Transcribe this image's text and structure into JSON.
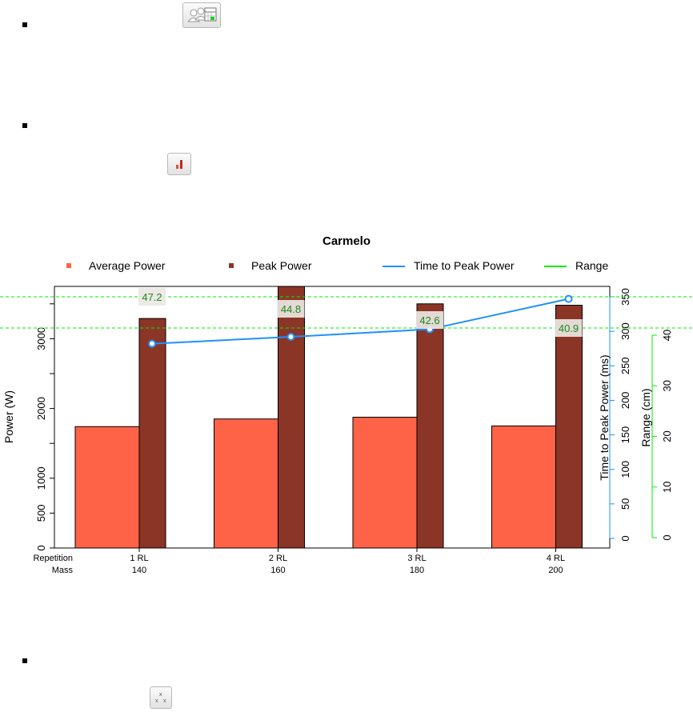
{
  "icons": {
    "people_calendar": "people-calendar-icon",
    "bar_chart": "bar-chart-icon",
    "scatter": "scatter-icon"
  },
  "colors": {
    "average_power": "#ff6347",
    "peak_power": "#8b3527",
    "time_to_peak": "#1e90ff",
    "range": "#00ee00"
  },
  "chart_data": {
    "type": "bar",
    "title": "Carmelo",
    "ylabel": "Power (W)",
    "ylabel_right_1": "Time to Peak Power (ms)",
    "ylabel_right_2": "Range (cm)",
    "row_labels": [
      "Repetition",
      "Mass"
    ],
    "categories": [
      "1 RL",
      "2 RL",
      "3 RL",
      "4 RL"
    ],
    "masses": [
      "140",
      "160",
      "180",
      "200"
    ],
    "ylim": [
      0,
      3750
    ],
    "y_ticks": [
      0,
      500,
      1000,
      2000,
      3000
    ],
    "series": [
      {
        "name": "Average Power",
        "values": [
          1740,
          1850,
          1875,
          1750
        ]
      },
      {
        "name": "Peak Power",
        "values": [
          3290,
          3750,
          3500,
          3480
        ]
      }
    ],
    "time_to_peak": {
      "name": "Time to Peak Power",
      "values": [
        282,
        292,
        303,
        347
      ],
      "ylim": [
        0,
        350
      ],
      "ticks": [
        0,
        50,
        100,
        150,
        200,
        250,
        300,
        350
      ]
    },
    "range": {
      "name": "Range",
      "values": [
        47.2,
        44.8,
        42.6,
        40.9
      ],
      "labels": [
        "47.2",
        "44.8",
        "42.6",
        "40.9"
      ],
      "ylim": [
        0,
        40
      ],
      "ticks": [
        0,
        10,
        20,
        30,
        40
      ]
    },
    "legend": [
      "Average Power",
      "Peak Power",
      "Time to Peak Power",
      "Range"
    ],
    "legend_position": "top",
    "grid": false
  }
}
